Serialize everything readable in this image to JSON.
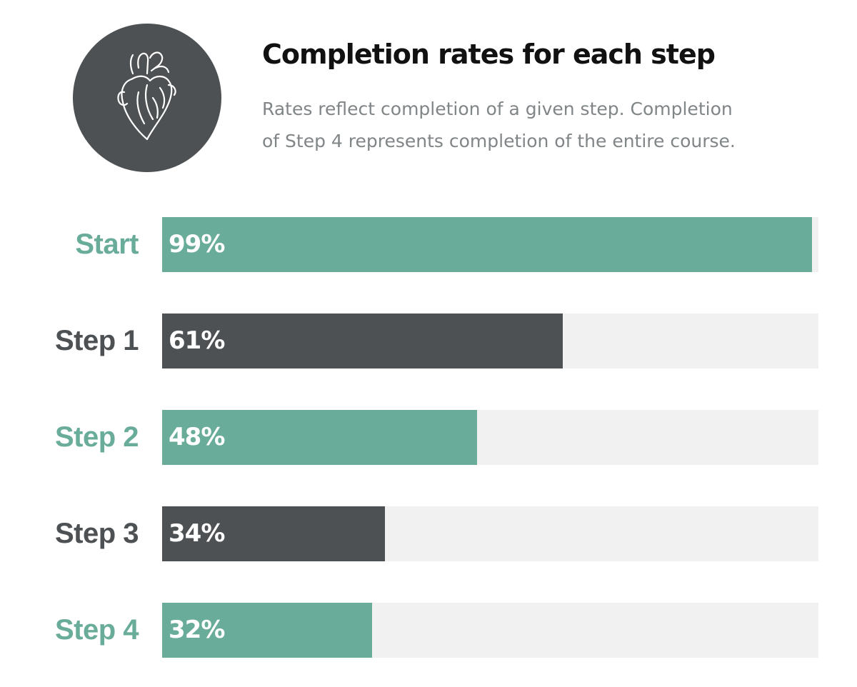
{
  "header": {
    "icon": "heart-icon",
    "title": "Completion rates for each step",
    "subtitle_lines": [
      "Rates reflect completion of a given step. Completion",
      "of Step 4 represents completion of the entire course."
    ]
  },
  "colors": {
    "teal": "#6aac9a",
    "dark": "#4d5153",
    "track": "#f1f1f1",
    "icon_bg": "#4d5153"
  },
  "chart_data": {
    "type": "bar",
    "orientation": "horizontal",
    "title": "Completion rates for each step",
    "categories": [
      "Start",
      "Step 1",
      "Step 2",
      "Step 3",
      "Step 4"
    ],
    "values": [
      99,
      61,
      48,
      34,
      32
    ],
    "value_labels": [
      "99%",
      "61%",
      "48%",
      "34%",
      "32%"
    ],
    "bar_colors": [
      "teal",
      "dark",
      "teal",
      "dark",
      "teal"
    ],
    "xlim": [
      0,
      100
    ],
    "unit": "%",
    "grid": false,
    "legend": "none"
  }
}
